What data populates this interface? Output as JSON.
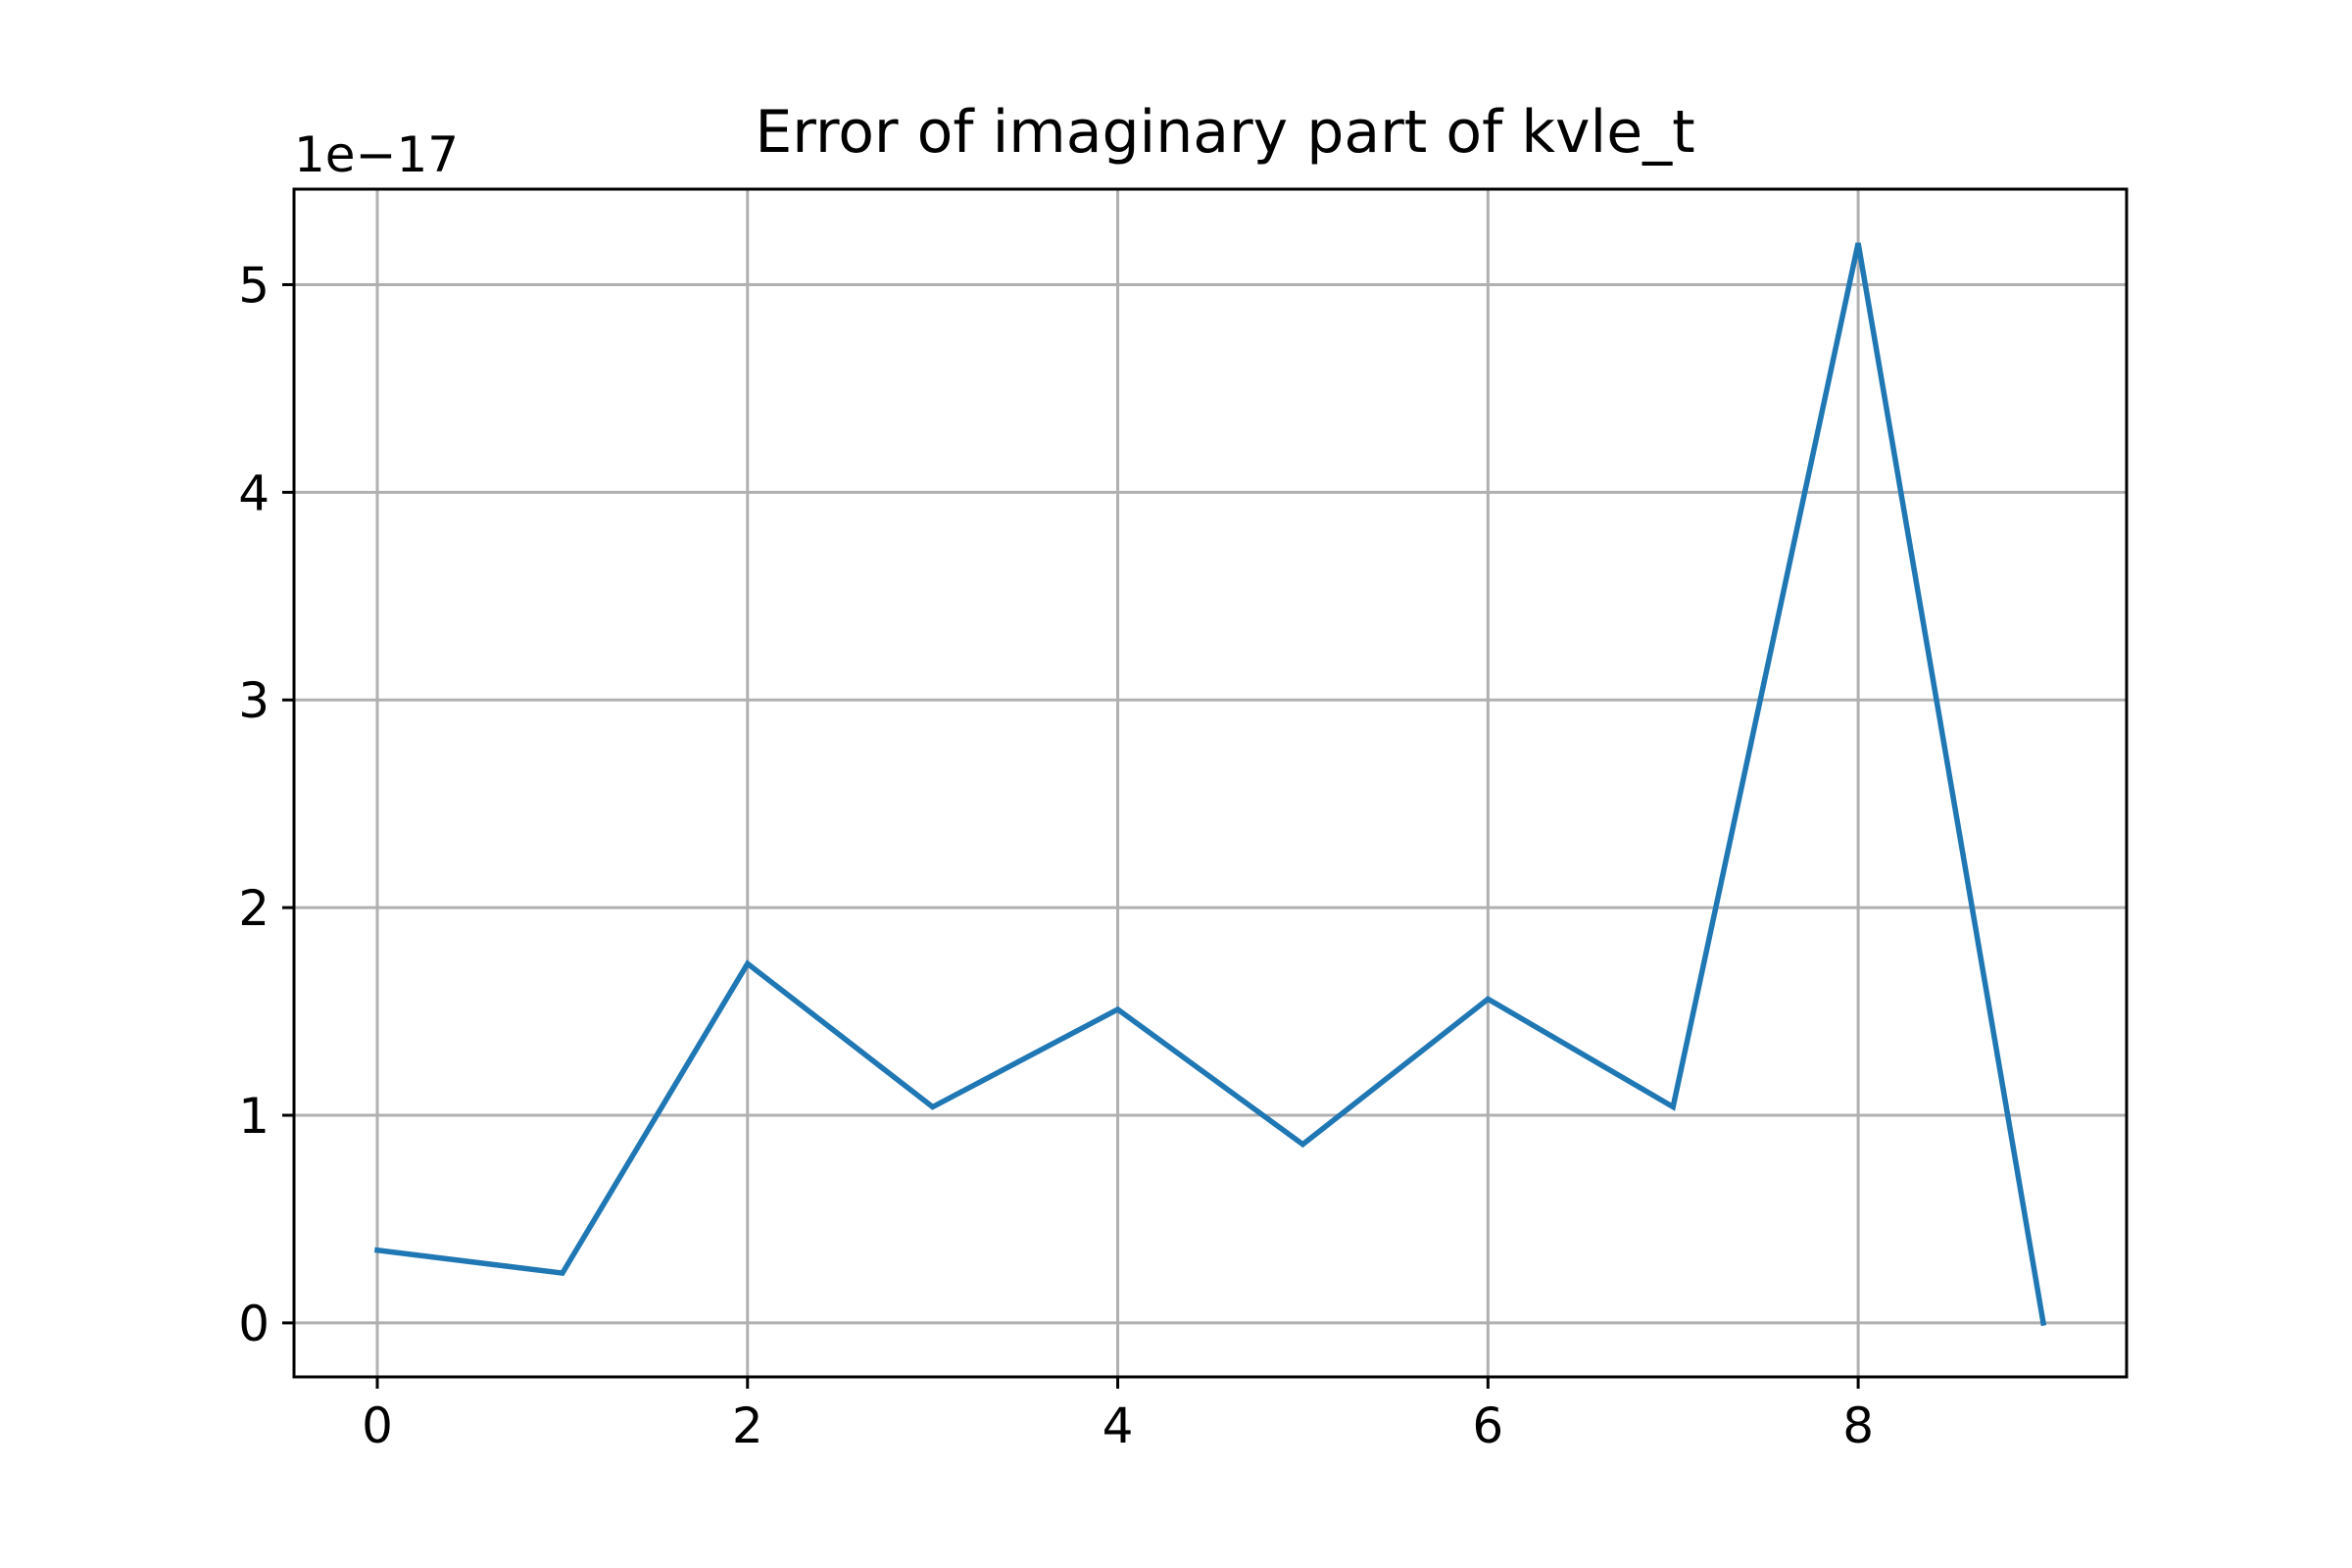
{
  "chart_data": {
    "type": "line",
    "title": "Error of imaginary part of kvle_t",
    "xlabel": "",
    "ylabel": "",
    "y_offset_label": "1e−17",
    "x": [
      0,
      1,
      2,
      3,
      4,
      5,
      6,
      7,
      8,
      9
    ],
    "series": [
      {
        "values": [
          3.5e-18,
          2.4e-18,
          1.73e-17,
          1.04e-17,
          1.51e-17,
          8.6e-18,
          1.56e-17,
          1.04e-17,
          5.2e-17,
          0.0
        ],
        "color": "#1f77b4"
      }
    ],
    "xlim": [
      -0.45,
      9.45
    ],
    "ylim": [
      -2.6e-18,
      5.46e-17
    ],
    "x_ticks": [
      0,
      2,
      4,
      6,
      8
    ],
    "x_tick_labels": [
      "0",
      "2",
      "4",
      "6",
      "8"
    ],
    "y_ticks": [
      0,
      1e-17,
      2e-17,
      3e-17,
      4e-17,
      5e-17
    ],
    "y_tick_labels": [
      "0",
      "1",
      "2",
      "3",
      "4",
      "5"
    ],
    "grid": true,
    "legend": "none"
  }
}
